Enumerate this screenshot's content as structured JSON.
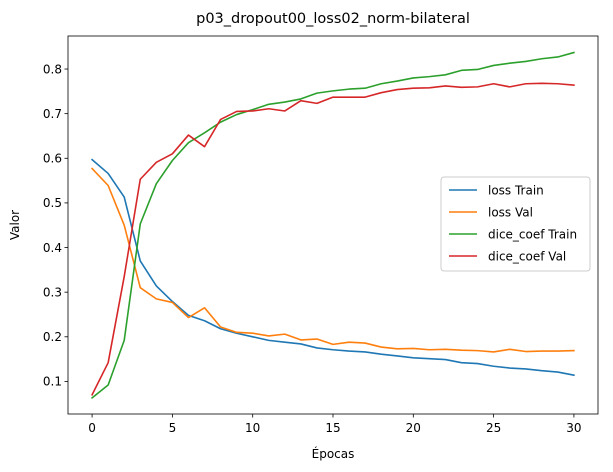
{
  "chart_data": {
    "type": "line",
    "title": "p03_dropout00_loss02_norm-bilateral",
    "xlabel": "Épocas",
    "ylabel": "Valor",
    "xlim": [
      -1.5,
      31.5
    ],
    "ylim": [
      0.027,
      0.874
    ],
    "x_ticks": [
      0,
      5,
      10,
      15,
      20,
      25,
      30
    ],
    "x_tick_labels": [
      "0",
      "5",
      "10",
      "15",
      "20",
      "25",
      "30"
    ],
    "y_ticks": [
      0.1,
      0.2,
      0.3,
      0.4,
      0.5,
      0.6,
      0.7,
      0.8
    ],
    "y_tick_labels": [
      "0.1",
      "0.2",
      "0.3",
      "0.4",
      "0.5",
      "0.6",
      "0.7",
      "0.8"
    ],
    "grid": false,
    "legend_position": "center-right",
    "x": [
      0,
      1,
      2,
      3,
      4,
      5,
      6,
      7,
      8,
      9,
      10,
      11,
      12,
      13,
      14,
      15,
      16,
      17,
      18,
      19,
      20,
      21,
      22,
      23,
      24,
      25,
      26,
      27,
      28,
      29,
      30
    ],
    "series": [
      {
        "name": "loss Train",
        "color": "#1f77b4",
        "values": [
          0.597,
          0.566,
          0.513,
          0.37,
          0.314,
          0.279,
          0.248,
          0.236,
          0.218,
          0.208,
          0.2,
          0.192,
          0.188,
          0.184,
          0.175,
          0.171,
          0.168,
          0.166,
          0.161,
          0.157,
          0.153,
          0.151,
          0.149,
          0.142,
          0.14,
          0.134,
          0.13,
          0.128,
          0.124,
          0.121,
          0.114
        ]
      },
      {
        "name": "loss Val",
        "color": "#ff7f0e",
        "values": [
          0.577,
          0.539,
          0.45,
          0.31,
          0.285,
          0.277,
          0.243,
          0.265,
          0.222,
          0.21,
          0.208,
          0.202,
          0.206,
          0.193,
          0.195,
          0.183,
          0.188,
          0.186,
          0.177,
          0.173,
          0.174,
          0.171,
          0.172,
          0.17,
          0.169,
          0.166,
          0.172,
          0.167,
          0.168,
          0.168,
          0.169
        ]
      },
      {
        "name": "dice_coef Train",
        "color": "#2ca02c",
        "values": [
          0.063,
          0.092,
          0.192,
          0.453,
          0.543,
          0.595,
          0.635,
          0.657,
          0.681,
          0.698,
          0.709,
          0.721,
          0.726,
          0.733,
          0.746,
          0.751,
          0.755,
          0.757,
          0.767,
          0.773,
          0.78,
          0.783,
          0.787,
          0.797,
          0.799,
          0.808,
          0.813,
          0.817,
          0.823,
          0.827,
          0.837
        ]
      },
      {
        "name": "dice_coef Val",
        "color": "#d62728",
        "values": [
          0.07,
          0.142,
          0.335,
          0.553,
          0.591,
          0.61,
          0.652,
          0.626,
          0.687,
          0.705,
          0.706,
          0.711,
          0.706,
          0.729,
          0.723,
          0.737,
          0.737,
          0.737,
          0.747,
          0.754,
          0.757,
          0.758,
          0.762,
          0.759,
          0.76,
          0.767,
          0.76,
          0.767,
          0.768,
          0.767,
          0.764
        ]
      }
    ]
  }
}
